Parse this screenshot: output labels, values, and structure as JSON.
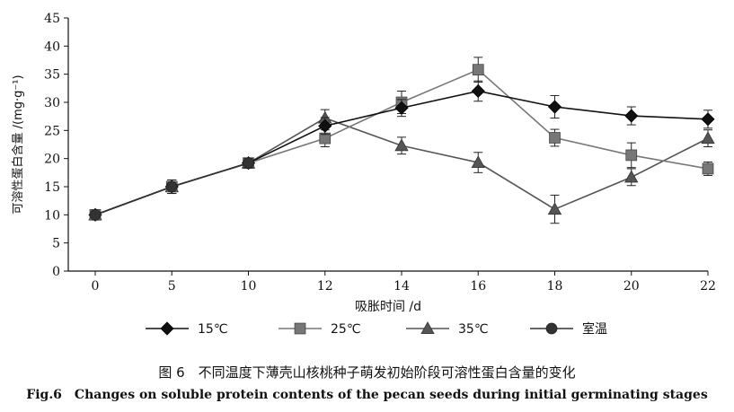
{
  "chart_data": {
    "type": "line",
    "ylabel": "可溶性蛋白含量 /(mg·g⁻¹)",
    "xlabel": "吸胀时间 /d",
    "x": [
      0,
      5,
      10,
      12,
      14,
      16,
      18,
      20,
      22
    ],
    "xticks": [
      "0",
      "5",
      "10",
      "12",
      "14",
      "16",
      "18",
      "20",
      "22"
    ],
    "ylim": [
      0,
      45
    ],
    "yticks": [
      "0",
      "5",
      "10",
      "15",
      "20",
      "25",
      "30",
      "35",
      "40",
      "45"
    ],
    "grid": false,
    "legend_position": "bottom",
    "series": [
      {
        "name": "15℃",
        "marker": "diamond",
        "color": "#111111",
        "values": [
          10,
          15,
          19.2,
          25.8,
          29,
          32,
          29.2,
          27.6,
          27
        ],
        "errors": [
          0,
          1.2,
          0.8,
          1.5,
          1.5,
          1.8,
          2.0,
          1.6,
          1.6
        ]
      },
      {
        "name": "25℃",
        "marker": "square",
        "color": "#777777",
        "values": [
          10,
          15,
          19.2,
          23.6,
          30,
          35.8,
          23.7,
          20.6,
          18.2
        ],
        "errors": [
          0,
          1.2,
          0.8,
          1.5,
          2.0,
          2.2,
          1.5,
          2.2,
          1.2
        ]
      },
      {
        "name": "35℃",
        "marker": "triangle",
        "color": "#555555",
        "values": [
          10,
          15,
          19.2,
          27.2,
          22.3,
          19.3,
          11,
          16.7,
          23.6
        ],
        "errors": [
          0,
          1.2,
          0.8,
          1.5,
          1.5,
          1.8,
          2.5,
          1.5,
          1.5
        ]
      },
      {
        "name": "室温",
        "marker": "circle",
        "color": "#333333",
        "values": [
          10,
          15,
          19.2,
          null,
          null,
          null,
          null,
          null,
          null
        ],
        "errors": [
          0,
          1.2,
          0.8,
          0,
          0,
          0,
          0,
          0,
          0
        ]
      }
    ]
  },
  "caption": {
    "zh": "图 6　不同温度下薄壳山核桃种子萌发初始阶段可溶性蛋白含量的变化",
    "en": "Fig.6　Changes on soluble protein contents of the pecan seeds during initial germinating stages"
  }
}
